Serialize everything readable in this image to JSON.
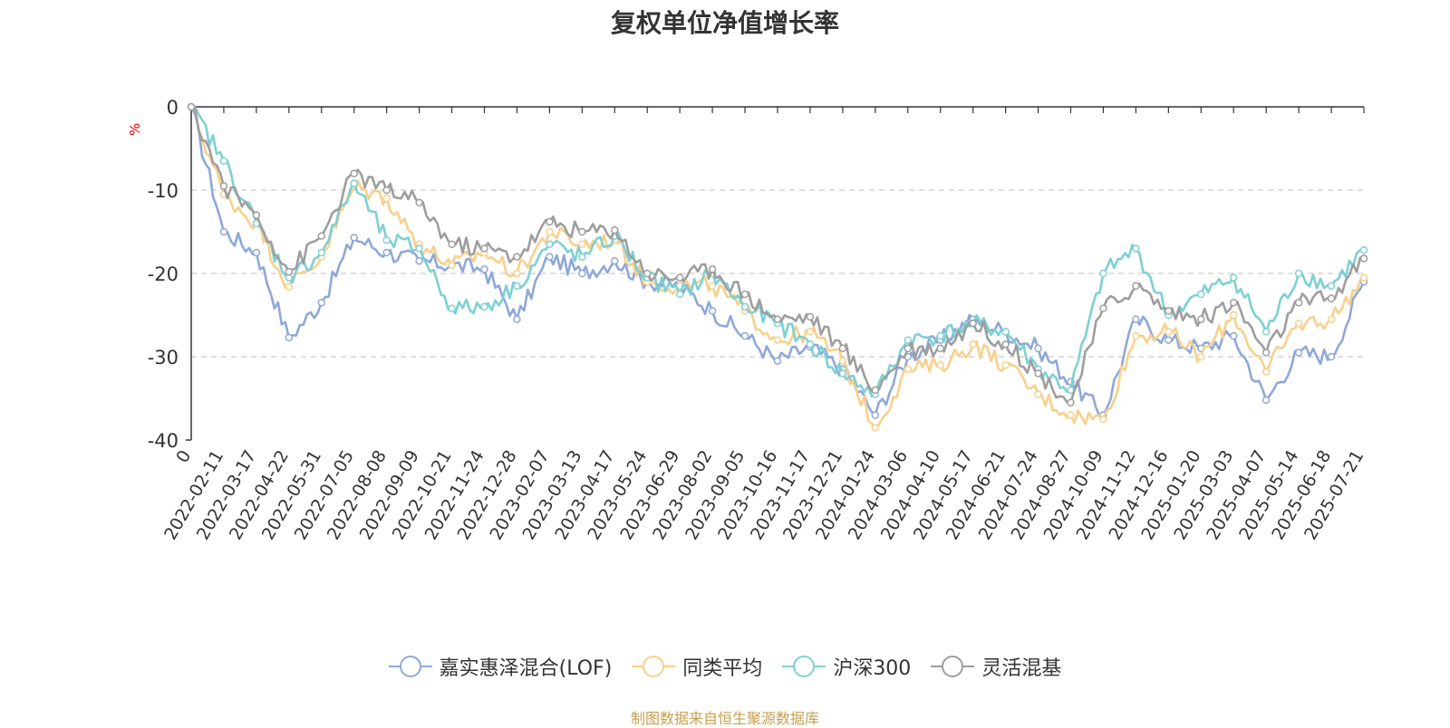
{
  "title": "复权单位净值增长率",
  "unit": "%",
  "source_note": "制图数据来自恒生聚源数据库",
  "chart_data": {
    "type": "line",
    "title": "复权单位净值增长率",
    "ylabel": "%",
    "ylim": [
      -40,
      0
    ],
    "yticks": [
      0,
      -10,
      -20,
      -30,
      -40
    ],
    "grid": true,
    "legend_position": "bottom",
    "x_tick_labels": [
      "0",
      "2022-02-11",
      "2022-03-17",
      "2022-04-22",
      "2022-05-31",
      "2022-07-05",
      "2022-08-08",
      "2022-09-09",
      "2022-10-21",
      "2022-11-24",
      "2022-12-28",
      "2023-02-07",
      "2023-03-13",
      "2023-04-17",
      "2023-05-24",
      "2023-06-29",
      "2023-08-02",
      "2023-09-05",
      "2023-10-16",
      "2023-11-17",
      "2023-12-21",
      "2024-01-24",
      "2024-03-06",
      "2024-04-10",
      "2024-05-17",
      "2024-06-21",
      "2024-07-24",
      "2024-08-27",
      "2024-10-09",
      "2024-11-12",
      "2024-12-16",
      "2025-01-20",
      "2025-03-03",
      "2025-04-07",
      "2025-05-14",
      "2025-06-18",
      "2025-07-21"
    ],
    "series": [
      {
        "name": "嘉实惠泽混合(LOF)",
        "color": "#8fa8d8",
        "values": [
          0,
          -15,
          -17.5,
          -27.7,
          -23.5,
          -15.7,
          -17.5,
          -18.5,
          -19,
          -19.5,
          -25.5,
          -18,
          -20,
          -18.5,
          -21,
          -21.5,
          -24.5,
          -27.5,
          -30.5,
          -28.8,
          -31.5,
          -37,
          -30,
          -28,
          -25.5,
          -27,
          -29,
          -33,
          -37,
          -25.5,
          -28,
          -29,
          -27.5,
          -35.2,
          -29.5,
          -30,
          -21
        ]
      },
      {
        "name": "同类平均",
        "color": "#f8d08c",
        "values": [
          0,
          -10.5,
          -14,
          -21.6,
          -18,
          -9.5,
          -11,
          -16.5,
          -19,
          -17.5,
          -20,
          -15,
          -16.5,
          -16,
          -21,
          -21.5,
          -21.5,
          -24.5,
          -28,
          -27,
          -30.5,
          -38.5,
          -31.5,
          -31,
          -28.5,
          -31,
          -34.5,
          -37,
          -37.5,
          -27.5,
          -27,
          -30,
          -25,
          -31.8,
          -26,
          -25.5,
          -20.5
        ]
      },
      {
        "name": "沪深300",
        "color": "#7ed0d3",
        "values": [
          0,
          -6.5,
          -14,
          -20.5,
          -17.5,
          -9.2,
          -16,
          -17,
          -24.2,
          -24,
          -21.5,
          -16.5,
          -18,
          -15.5,
          -20.5,
          -22.5,
          -20,
          -24,
          -26,
          -28.5,
          -32,
          -34.5,
          -28,
          -27.5,
          -26,
          -27,
          -31.5,
          -34,
          -20,
          -17,
          -25,
          -22.5,
          -20.5,
          -27,
          -20,
          -21.5,
          -17.2
        ]
      },
      {
        "name": "灵活混基",
        "color": "#9e9e9e",
        "values": [
          0,
          -9.5,
          -13,
          -19.8,
          -15.5,
          -8,
          -10,
          -11.5,
          -16.5,
          -17,
          -18,
          -13.8,
          -15,
          -14.8,
          -20,
          -20.5,
          -19.5,
          -22.5,
          -25.5,
          -25.2,
          -29,
          -34,
          -29,
          -29,
          -26,
          -28.5,
          -32,
          -35.5,
          -24.2,
          -21.5,
          -24.5,
          -25.5,
          -23.5,
          -29.5,
          -23.5,
          -23,
          -18.2
        ]
      }
    ]
  },
  "legend": {
    "items": [
      {
        "label": "嘉实惠泽混合(LOF)",
        "color": "#8fa8d8"
      },
      {
        "label": "同类平均",
        "color": "#f8d08c"
      },
      {
        "label": "沪深300",
        "color": "#7ed0d3"
      },
      {
        "label": "灵活混基",
        "color": "#9e9e9e"
      }
    ]
  }
}
